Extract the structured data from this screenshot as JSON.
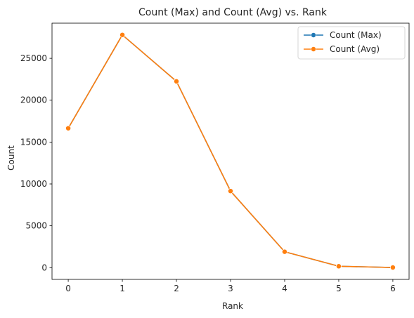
{
  "chart_data": {
    "type": "line",
    "title": "Count (Max) and Count (Avg) vs. Rank",
    "xlabel": "Rank",
    "ylabel": "Count",
    "xlim": [
      -0.3,
      6.3
    ],
    "ylim": [
      -1400,
      29200
    ],
    "x": [
      0,
      1,
      2,
      3,
      4,
      5,
      6
    ],
    "x_ticks": [
      0,
      1,
      2,
      3,
      4,
      5,
      6
    ],
    "y_ticks": [
      0,
      5000,
      10000,
      15000,
      20000,
      25000
    ],
    "grid": false,
    "legend_position": "top-right",
    "series": [
      {
        "name": "Count (Max)",
        "color": "#1f77b4",
        "marker": "circle",
        "values": [
          16650,
          27800,
          22250,
          9150,
          1900,
          170,
          20
        ]
      },
      {
        "name": "Count (Avg)",
        "color": "#ff7f0e",
        "marker": "circle",
        "values": [
          16650,
          27800,
          22250,
          9150,
          1900,
          170,
          20
        ]
      }
    ]
  }
}
